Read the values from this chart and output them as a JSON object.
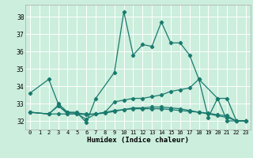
{
  "xlabel": "Humidex (Indice chaleur)",
  "bg_color": "#cceedd",
  "grid_color": "#ffffff",
  "line_color": "#1a7a6e",
  "xlim": [
    -0.5,
    23.5
  ],
  "ylim": [
    31.5,
    38.7
  ],
  "xticks": [
    0,
    1,
    2,
    3,
    4,
    5,
    6,
    7,
    8,
    9,
    10,
    11,
    12,
    13,
    14,
    15,
    16,
    17,
    18,
    19,
    20,
    21,
    22,
    23
  ],
  "yticks": [
    32,
    33,
    34,
    35,
    36,
    37,
    38
  ],
  "series": [
    {
      "x": [
        0,
        2,
        3,
        4,
        5,
        6,
        7,
        9,
        10,
        11,
        12,
        13,
        14,
        15,
        16,
        17,
        18,
        20,
        21,
        22,
        23
      ],
      "y": [
        33.6,
        34.4,
        33.0,
        32.5,
        32.5,
        31.9,
        33.3,
        34.8,
        38.3,
        35.8,
        36.4,
        36.3,
        37.7,
        36.5,
        36.5,
        35.8,
        34.4,
        33.3,
        32.0,
        32.0,
        32.0
      ]
    },
    {
      "x": [
        0,
        2,
        3,
        4,
        5,
        6,
        7,
        8,
        9,
        10,
        11,
        12,
        13,
        14,
        15,
        16,
        17,
        18,
        19,
        20,
        21,
        22,
        23
      ],
      "y": [
        32.5,
        32.4,
        32.9,
        32.4,
        32.4,
        32.1,
        32.4,
        32.5,
        33.1,
        33.2,
        33.3,
        33.3,
        33.4,
        33.5,
        33.7,
        33.8,
        33.9,
        34.4,
        32.2,
        33.3,
        33.3,
        32.0,
        32.0
      ]
    },
    {
      "x": [
        0,
        2,
        3,
        4,
        5,
        6,
        7,
        8,
        9,
        10,
        11,
        12,
        13,
        14,
        15,
        16,
        17,
        18,
        19,
        20,
        21,
        22,
        23
      ],
      "y": [
        32.5,
        32.4,
        32.4,
        32.4,
        32.4,
        32.35,
        32.4,
        32.45,
        32.55,
        32.65,
        32.75,
        32.75,
        32.8,
        32.8,
        32.75,
        32.7,
        32.6,
        32.5,
        32.4,
        32.3,
        32.2,
        32.0,
        32.0
      ]
    },
    {
      "x": [
        0,
        2,
        3,
        4,
        5,
        6,
        7,
        8,
        9,
        10,
        11,
        12,
        13,
        14,
        15,
        16,
        17,
        18,
        19,
        20,
        21,
        22,
        23
      ],
      "y": [
        32.5,
        32.4,
        32.85,
        32.5,
        32.45,
        32.4,
        32.4,
        32.5,
        32.6,
        32.65,
        32.7,
        32.7,
        32.7,
        32.7,
        32.65,
        32.6,
        32.55,
        32.5,
        32.45,
        32.35,
        32.3,
        32.0,
        32.0
      ]
    }
  ]
}
